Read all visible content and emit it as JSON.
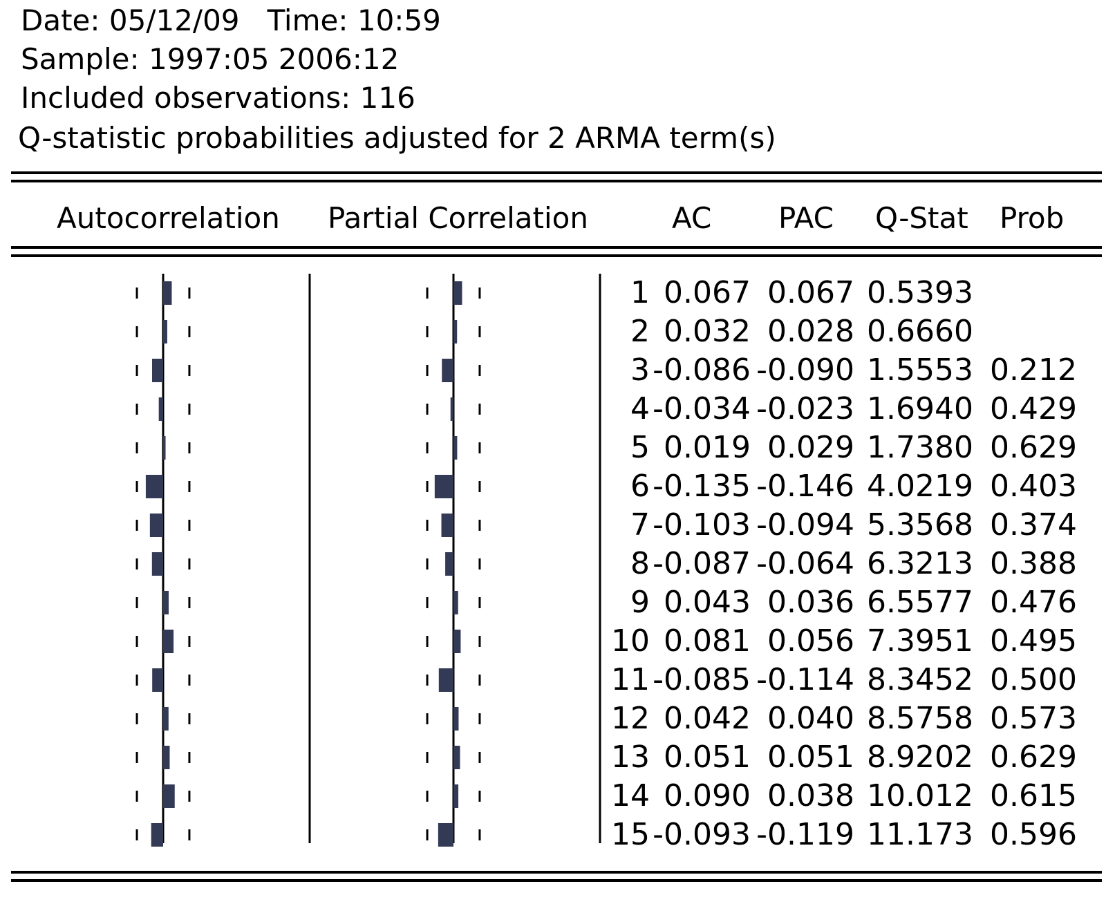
{
  "header": {
    "date_line": "Date: 05/12/09   Time: 10:59",
    "sample_line": "Sample: 1997:05 2006:12",
    "obs_line": "Included observations: 116",
    "qstat_note": "Q-statistic probabilities adjusted for 2 ARMA term(s)"
  },
  "columns": {
    "autocorrelation": "Autocorrelation",
    "partial_correlation": "Partial Correlation",
    "ac": "AC",
    "pac": "PAC",
    "qstat": "Q-Stat",
    "prob": "Prob"
  },
  "chart_data": {
    "type": "table",
    "lags": [
      "1",
      "2",
      "3",
      "4",
      "5",
      "6",
      "7",
      "8",
      "9",
      "10",
      "11",
      "12",
      "13",
      "14",
      "15"
    ],
    "ac_text": [
      "0.067",
      "0.032",
      "-0.086",
      "-0.034",
      "0.019",
      "-0.135",
      "-0.103",
      "-0.087",
      "0.043",
      "0.081",
      "-0.085",
      "0.042",
      "0.051",
      "0.090",
      "-0.093"
    ],
    "pac_text": [
      "0.067",
      "0.028",
      "-0.090",
      "-0.023",
      "0.029",
      "-0.146",
      "-0.094",
      "-0.064",
      "0.036",
      "0.056",
      "-0.114",
      "0.040",
      "0.051",
      "0.038",
      "-0.119"
    ],
    "qstat_text": [
      "0.5393",
      "0.6660",
      "1.5553",
      "1.6940",
      "1.7380",
      "4.0219",
      "5.3568",
      "6.3213",
      "6.5577",
      "7.3951",
      "8.3452",
      "8.5758",
      "8.9202",
      "10.012",
      "11.173"
    ],
    "prob_text": [
      "",
      "",
      "0.212",
      "0.429",
      "0.629",
      "0.403",
      "0.374",
      "0.388",
      "0.476",
      "0.495",
      "0.500",
      "0.573",
      "0.629",
      "0.615",
      "0.596"
    ],
    "ac": [
      0.067,
      0.032,
      -0.086,
      -0.034,
      0.019,
      -0.135,
      -0.103,
      -0.087,
      0.043,
      0.081,
      -0.085,
      0.042,
      0.051,
      0.09,
      -0.093
    ],
    "pac": [
      0.067,
      0.028,
      -0.09,
      -0.023,
      0.029,
      -0.146,
      -0.094,
      -0.064,
      0.036,
      0.056,
      -0.114,
      0.04,
      0.051,
      0.038,
      -0.119
    ],
    "confidence_band": 0.186,
    "bar_color": "#333a55"
  }
}
